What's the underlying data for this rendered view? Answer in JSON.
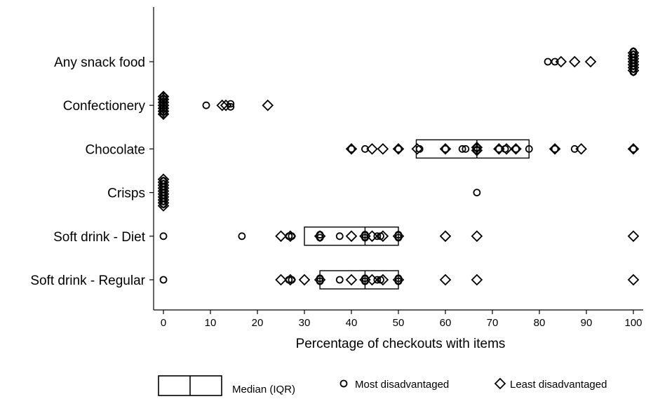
{
  "chart_data": {
    "type": "scatter",
    "xlabel": "Percentage of checkouts with items",
    "xlim": [
      0,
      100
    ],
    "xticks": [
      0,
      10,
      20,
      30,
      40,
      50,
      60,
      70,
      80,
      90,
      100
    ],
    "grid": false,
    "legend_position": "bottom",
    "categories": [
      "Any snack food",
      "Confectionery",
      "Chocolate",
      "Crisps",
      "Soft drink - Diet",
      "Soft drink - Regular"
    ],
    "legend": {
      "box_label": "Median (IQR)",
      "most_label": "Most disadvantaged",
      "least_label": "Least disadvantaged"
    },
    "boxes": [
      {
        "category": "Chocolate",
        "q1": 53.8,
        "median": 66.7,
        "q3": 77.8
      },
      {
        "category": "Soft drink - Diet",
        "q1": 30,
        "median": 42.9,
        "q3": 50
      },
      {
        "category": "Soft drink - Regular",
        "q1": 33.3,
        "median": 42.9,
        "q3": 50
      }
    ],
    "series": [
      {
        "name": "Most disadvantaged",
        "marker": "circle",
        "points": {
          "Any snack food": [
            81.8,
            83.3,
            100,
            100,
            100,
            100,
            100,
            100,
            100,
            100
          ],
          "Confectionery": [
            0,
            0,
            0,
            0,
            0,
            0,
            0,
            9.1,
            14.3,
            14.3
          ],
          "Chocolate": [
            40,
            42.9,
            50,
            54.5,
            60,
            63.6,
            64.3,
            66.7,
            66.7,
            71.4,
            72.7,
            75,
            77.8,
            83.3,
            87.5,
            100
          ],
          "Crisps": [
            0,
            0,
            0,
            0,
            0,
            0,
            0,
            0,
            0,
            66.7
          ],
          "Soft drink - Diet": [
            0,
            16.7,
            26.7,
            27.3,
            33.3,
            33.3,
            37.5,
            42.9,
            42.9,
            45.5,
            46.2,
            50,
            50
          ],
          "Soft drink - Regular": [
            0,
            26.7,
            27.3,
            33.3,
            33.3,
            37.5,
            42.9,
            42.9,
            45.5,
            46.2,
            50,
            50
          ]
        }
      },
      {
        "name": "Least disadvantaged",
        "marker": "diamond",
        "points": {
          "Any snack food": [
            84.6,
            87.5,
            90.9,
            100,
            100,
            100,
            100,
            100,
            100,
            100
          ],
          "Confectionery": [
            0,
            0,
            0,
            0,
            0,
            0,
            0,
            12.5,
            13.3,
            22.2
          ],
          "Chocolate": [
            40,
            44.4,
            46.7,
            50,
            54,
            60,
            66.7,
            66.7,
            71.4,
            73,
            75,
            83.3,
            88.9,
            100
          ],
          "Crisps": [
            0,
            0,
            0,
            0,
            0,
            0,
            0,
            0,
            0,
            0
          ],
          "Soft drink - Diet": [
            25,
            27,
            33.3,
            40,
            42.9,
            44.4,
            46.7,
            50,
            60,
            66.7,
            100
          ],
          "Soft drink - Regular": [
            25,
            27,
            30,
            33.3,
            40,
            42.9,
            44.4,
            46.7,
            50,
            60,
            66.7,
            100
          ]
        }
      }
    ]
  }
}
